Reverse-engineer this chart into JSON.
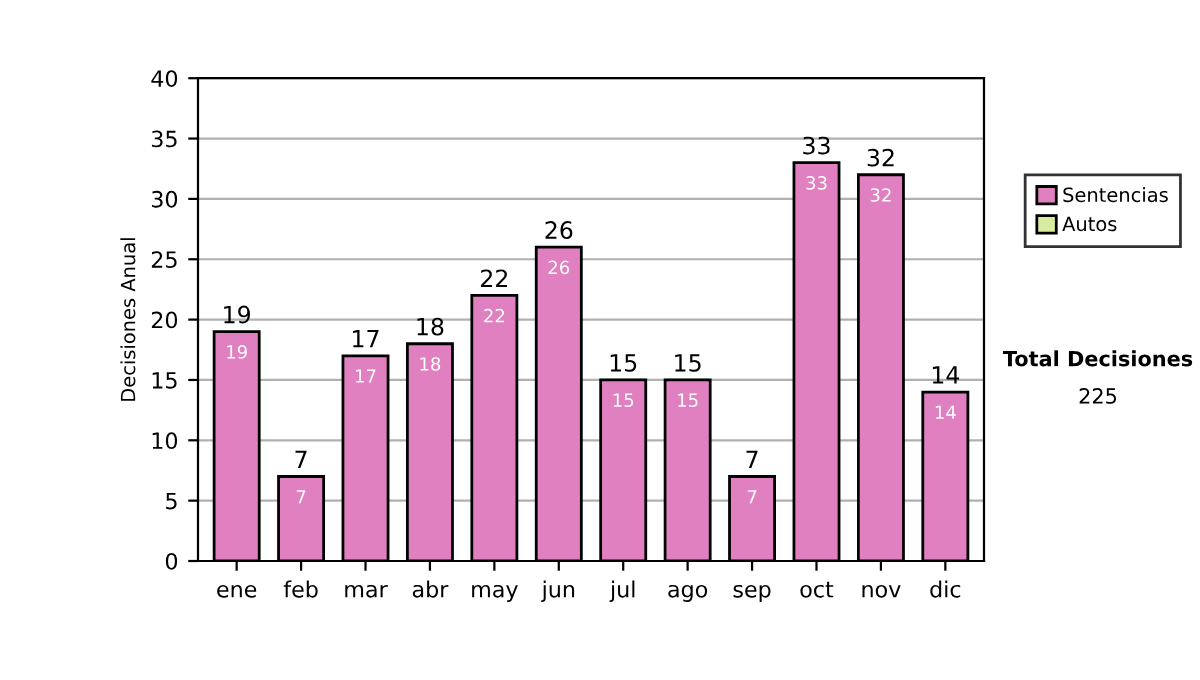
{
  "chart_data": {
    "type": "bar",
    "ylabel": "Decisiones Anual",
    "categories": [
      "ene",
      "feb",
      "mar",
      "abr",
      "may",
      "jun",
      "jul",
      "ago",
      "sep",
      "oct",
      "nov",
      "dic"
    ],
    "series": [
      {
        "name": "Sentencias",
        "color": "#e080c0",
        "values": [
          19,
          7,
          17,
          18,
          22,
          26,
          15,
          15,
          7,
          33,
          32,
          14
        ]
      },
      {
        "name": "Autos",
        "color": "#d8eca0",
        "values": [
          null,
          null,
          null,
          null,
          null,
          null,
          null,
          null,
          null,
          null,
          null,
          null
        ]
      }
    ],
    "stacked": true,
    "data_labels": true,
    "totals": [
      "19",
      "7",
      "17",
      "18",
      "22",
      "26",
      "15",
      "15",
      "7",
      "33",
      "32",
      "14"
    ],
    "ylim": [
      0,
      40
    ],
    "yticks": [
      0,
      5,
      10,
      15,
      20,
      25,
      30,
      35,
      40
    ],
    "grid": "y",
    "legend": "right",
    "annotations": [
      "Total Decisiones",
      "225"
    ]
  }
}
